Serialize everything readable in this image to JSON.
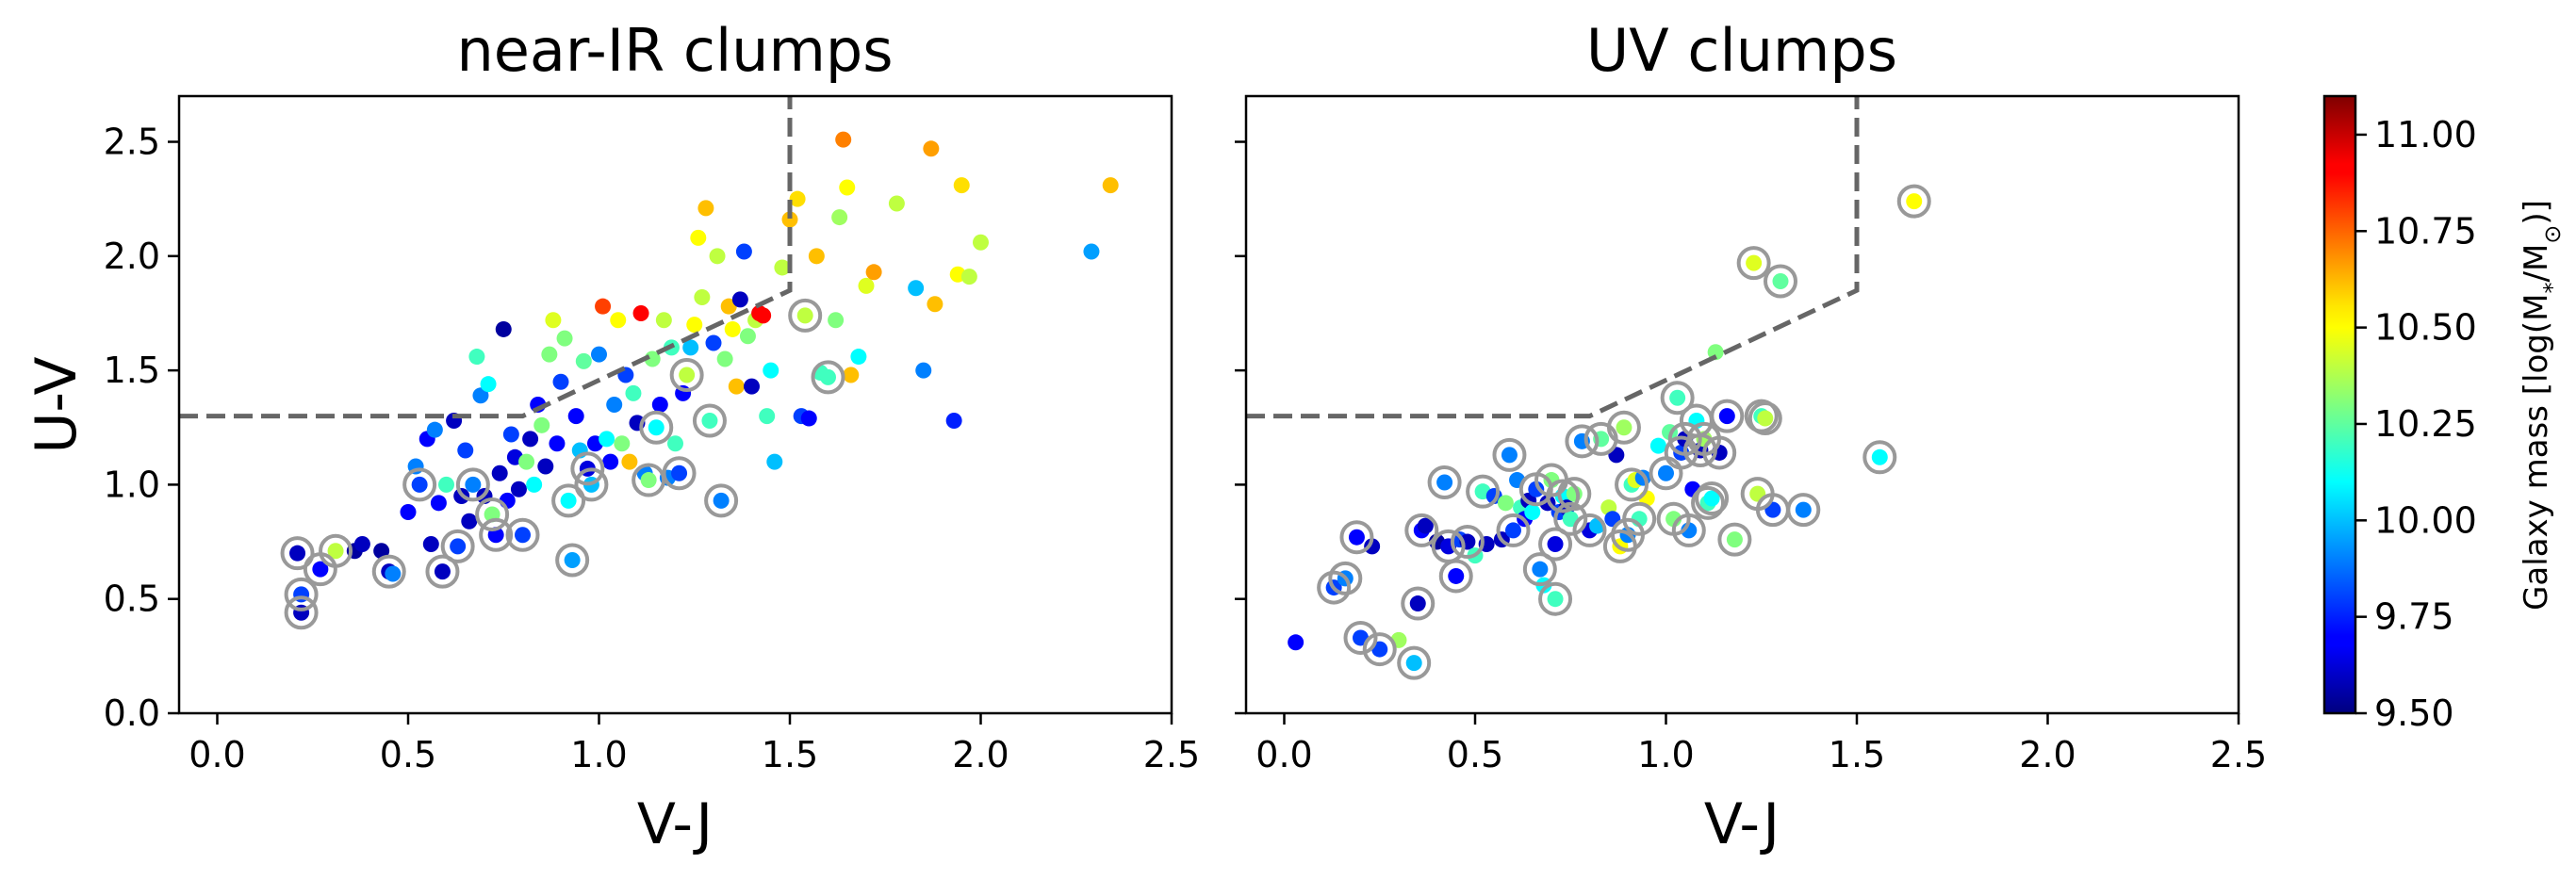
{
  "colors": {
    "frame": "#000000",
    "dashed_line": "#666666",
    "highlight_ring": "#999999"
  },
  "chart_data": [
    {
      "type": "scatter",
      "title": "near-IR clumps",
      "xlabel": "V-J",
      "ylabel": "U-V",
      "xlim": [
        -0.1,
        2.5
      ],
      "ylim": [
        0.0,
        2.7
      ],
      "xticks": [
        "0.0",
        "0.5",
        "1.0",
        "1.5",
        "2.0",
        "2.5"
      ],
      "yticks": [
        "0.0",
        "0.5",
        "1.0",
        "1.5",
        "2.0",
        "2.5"
      ],
      "selection_line": [
        [
          -0.1,
          1.3
        ],
        [
          0.8,
          1.3
        ],
        [
          1.5,
          1.85
        ],
        [
          1.5,
          2.7
        ]
      ],
      "points": [
        [
          0.21,
          0.7,
          9.6,
          1
        ],
        [
          0.22,
          0.52,
          9.8,
          1
        ],
        [
          0.22,
          0.44,
          9.6,
          1
        ],
        [
          0.27,
          0.63,
          9.7,
          1
        ],
        [
          0.31,
          0.71,
          10.4,
          1
        ],
        [
          0.36,
          0.71,
          9.55,
          0
        ],
        [
          0.38,
          0.74,
          9.6,
          0
        ],
        [
          0.43,
          0.71,
          9.55,
          0
        ],
        [
          0.45,
          0.62,
          9.6,
          1
        ],
        [
          0.46,
          0.61,
          9.9,
          0
        ],
        [
          0.5,
          0.88,
          9.7,
          0
        ],
        [
          0.52,
          1.08,
          9.9,
          0
        ],
        [
          0.53,
          1.0,
          9.8,
          1
        ],
        [
          0.55,
          1.2,
          9.7,
          0
        ],
        [
          0.56,
          0.74,
          9.6,
          0
        ],
        [
          0.57,
          1.24,
          9.9,
          0
        ],
        [
          0.58,
          0.92,
          9.7,
          0
        ],
        [
          0.59,
          0.62,
          9.6,
          1
        ],
        [
          0.6,
          1.0,
          10.2,
          0
        ],
        [
          0.62,
          1.28,
          9.6,
          0
        ],
        [
          0.63,
          0.73,
          9.8,
          1
        ],
        [
          0.64,
          0.95,
          9.6,
          0
        ],
        [
          0.65,
          1.15,
          9.8,
          0
        ],
        [
          0.66,
          0.84,
          9.6,
          0
        ],
        [
          0.67,
          1.0,
          9.9,
          1
        ],
        [
          0.68,
          1.56,
          10.2,
          0
        ],
        [
          0.69,
          1.39,
          9.9,
          0
        ],
        [
          0.7,
          0.95,
          9.6,
          0
        ],
        [
          0.71,
          1.44,
          10.1,
          0
        ],
        [
          0.72,
          0.87,
          10.3,
          1
        ],
        [
          0.73,
          0.78,
          9.7,
          1
        ],
        [
          0.74,
          1.05,
          9.6,
          0
        ],
        [
          0.75,
          1.68,
          9.55,
          0
        ],
        [
          0.76,
          0.93,
          9.7,
          0
        ],
        [
          0.77,
          1.22,
          9.8,
          0
        ],
        [
          0.78,
          1.12,
          9.65,
          0
        ],
        [
          0.79,
          0.98,
          9.6,
          0
        ],
        [
          0.8,
          0.78,
          9.8,
          1
        ],
        [
          0.81,
          1.1,
          10.3,
          0
        ],
        [
          0.82,
          1.2,
          9.6,
          0
        ],
        [
          0.83,
          1.0,
          10.1,
          0
        ],
        [
          0.84,
          1.35,
          9.7,
          0
        ],
        [
          0.85,
          1.26,
          10.3,
          0
        ],
        [
          0.86,
          1.08,
          9.6,
          0
        ],
        [
          0.87,
          1.57,
          10.3,
          0
        ],
        [
          0.88,
          1.72,
          10.45,
          0
        ],
        [
          0.89,
          1.18,
          9.7,
          0
        ],
        [
          0.9,
          1.45,
          9.8,
          0
        ],
        [
          0.91,
          1.64,
          10.3,
          0
        ],
        [
          0.92,
          0.93,
          10.1,
          1
        ],
        [
          0.93,
          0.67,
          9.95,
          1
        ],
        [
          0.94,
          1.3,
          9.7,
          0
        ],
        [
          0.95,
          1.15,
          10.0,
          0
        ],
        [
          0.96,
          1.54,
          10.25,
          0
        ],
        [
          0.97,
          1.07,
          9.65,
          1
        ],
        [
          0.98,
          1.0,
          10.0,
          1
        ],
        [
          0.99,
          1.18,
          9.7,
          0
        ],
        [
          1.0,
          1.57,
          9.9,
          0
        ],
        [
          1.01,
          1.78,
          10.8,
          0
        ],
        [
          1.02,
          1.2,
          10.1,
          0
        ],
        [
          1.03,
          1.1,
          9.7,
          0
        ],
        [
          1.04,
          1.35,
          9.9,
          0
        ],
        [
          1.05,
          1.72,
          10.5,
          0
        ],
        [
          1.06,
          1.18,
          10.3,
          0
        ],
        [
          1.07,
          1.48,
          9.8,
          0
        ],
        [
          1.08,
          1.1,
          10.6,
          0
        ],
        [
          1.09,
          1.4,
          10.2,
          0
        ],
        [
          1.1,
          1.27,
          9.6,
          0
        ],
        [
          1.11,
          1.75,
          10.9,
          0
        ],
        [
          1.12,
          1.05,
          9.9,
          0
        ],
        [
          1.13,
          1.02,
          10.3,
          1
        ],
        [
          1.14,
          1.55,
          10.3,
          0
        ],
        [
          1.15,
          1.25,
          10.1,
          1
        ],
        [
          1.16,
          1.35,
          9.7,
          0
        ],
        [
          1.17,
          1.72,
          10.4,
          0
        ],
        [
          1.18,
          1.03,
          9.9,
          0
        ],
        [
          1.19,
          1.6,
          10.2,
          0
        ],
        [
          1.2,
          1.18,
          10.2,
          0
        ],
        [
          1.21,
          1.05,
          9.8,
          1
        ],
        [
          1.22,
          1.4,
          9.7,
          0
        ],
        [
          1.23,
          1.48,
          10.4,
          1
        ],
        [
          1.24,
          1.6,
          10.0,
          0
        ],
        [
          1.25,
          1.7,
          10.5,
          0
        ],
        [
          1.26,
          2.08,
          10.5,
          0
        ],
        [
          1.27,
          1.82,
          10.4,
          0
        ],
        [
          1.28,
          2.21,
          10.6,
          0
        ],
        [
          1.29,
          1.28,
          10.2,
          1
        ],
        [
          1.3,
          1.62,
          9.8,
          0
        ],
        [
          1.31,
          2.0,
          10.4,
          0
        ],
        [
          1.32,
          0.93,
          9.9,
          1
        ],
        [
          1.33,
          1.55,
          10.3,
          0
        ],
        [
          1.34,
          1.78,
          10.6,
          0
        ],
        [
          1.35,
          1.68,
          10.5,
          0
        ],
        [
          1.36,
          1.43,
          10.6,
          0
        ],
        [
          1.37,
          1.81,
          9.6,
          0
        ],
        [
          1.38,
          2.02,
          9.8,
          0
        ],
        [
          1.39,
          1.65,
          10.3,
          0
        ],
        [
          1.4,
          1.43,
          9.6,
          0
        ],
        [
          1.41,
          1.72,
          10.4,
          0
        ],
        [
          1.42,
          1.75,
          10.9,
          0
        ],
        [
          1.43,
          1.74,
          10.9,
          0
        ],
        [
          1.44,
          1.3,
          10.2,
          0
        ],
        [
          1.45,
          1.5,
          10.1,
          0
        ],
        [
          1.46,
          1.1,
          10.0,
          0
        ],
        [
          1.48,
          1.95,
          10.4,
          0
        ],
        [
          1.5,
          2.16,
          10.6,
          0
        ],
        [
          1.52,
          2.25,
          10.55,
          0
        ],
        [
          1.53,
          1.3,
          9.8,
          0
        ],
        [
          1.54,
          1.74,
          10.4,
          1
        ],
        [
          1.55,
          1.29,
          9.7,
          0
        ],
        [
          1.57,
          2.0,
          10.6,
          0
        ],
        [
          1.58,
          1.49,
          10.2,
          0
        ],
        [
          1.6,
          1.47,
          10.2,
          1
        ],
        [
          1.62,
          1.72,
          10.3,
          0
        ],
        [
          1.63,
          2.17,
          10.35,
          0
        ],
        [
          1.64,
          2.51,
          10.7,
          0
        ],
        [
          1.65,
          2.3,
          10.5,
          0
        ],
        [
          1.66,
          1.48,
          10.6,
          0
        ],
        [
          1.68,
          1.56,
          10.1,
          0
        ],
        [
          1.7,
          1.87,
          10.45,
          0
        ],
        [
          1.72,
          1.93,
          10.65,
          0
        ],
        [
          1.78,
          2.23,
          10.4,
          0
        ],
        [
          1.83,
          1.86,
          10.0,
          0
        ],
        [
          1.85,
          1.5,
          9.9,
          0
        ],
        [
          1.87,
          2.47,
          10.65,
          0
        ],
        [
          1.88,
          1.79,
          10.6,
          0
        ],
        [
          1.93,
          1.28,
          9.75,
          0
        ],
        [
          1.94,
          1.92,
          10.5,
          0
        ],
        [
          1.95,
          2.31,
          10.55,
          0
        ],
        [
          1.97,
          1.91,
          10.4,
          0
        ],
        [
          2.0,
          2.06,
          10.4,
          0
        ],
        [
          2.29,
          2.02,
          9.95,
          0
        ],
        [
          2.34,
          2.31,
          10.6,
          0
        ]
      ]
    },
    {
      "type": "scatter",
      "title": "UV clumps",
      "xlabel": "V-J",
      "ylabel": "",
      "xlim": [
        -0.1,
        2.5
      ],
      "ylim": [
        0.0,
        2.7
      ],
      "xticks": [
        "0.0",
        "0.5",
        "1.0",
        "1.5",
        "2.0",
        "2.5"
      ],
      "yticks": [],
      "selection_line": [
        [
          -0.1,
          1.3
        ],
        [
          0.8,
          1.3
        ],
        [
          1.5,
          1.85
        ],
        [
          1.5,
          2.7
        ]
      ],
      "points": [
        [
          0.03,
          0.31,
          9.7,
          0
        ],
        [
          0.13,
          0.55,
          9.8,
          1
        ],
        [
          0.16,
          0.59,
          9.9,
          1
        ],
        [
          0.19,
          0.77,
          9.7,
          1
        ],
        [
          0.2,
          0.33,
          9.8,
          1
        ],
        [
          0.23,
          0.73,
          9.6,
          0
        ],
        [
          0.25,
          0.28,
          9.8,
          1
        ],
        [
          0.3,
          0.32,
          10.35,
          0
        ],
        [
          0.34,
          0.22,
          10.0,
          1
        ],
        [
          0.35,
          0.48,
          9.6,
          1
        ],
        [
          0.36,
          0.8,
          9.7,
          1
        ],
        [
          0.37,
          0.82,
          9.6,
          0
        ],
        [
          0.4,
          0.75,
          9.55,
          0
        ],
        [
          0.42,
          1.01,
          9.9,
          1
        ],
        [
          0.43,
          0.73,
          9.65,
          1
        ],
        [
          0.45,
          0.6,
          9.7,
          1
        ],
        [
          0.46,
          0.76,
          9.8,
          0
        ],
        [
          0.48,
          0.75,
          9.6,
          1
        ],
        [
          0.5,
          0.69,
          10.2,
          0
        ],
        [
          0.52,
          0.97,
          10.2,
          1
        ],
        [
          0.53,
          0.74,
          9.6,
          0
        ],
        [
          0.55,
          0.95,
          9.8,
          0
        ],
        [
          0.57,
          0.76,
          9.6,
          0
        ],
        [
          0.58,
          0.92,
          10.3,
          0
        ],
        [
          0.59,
          1.13,
          9.9,
          1
        ],
        [
          0.6,
          0.8,
          9.8,
          1
        ],
        [
          0.61,
          1.02,
          9.9,
          0
        ],
        [
          0.62,
          0.9,
          10.2,
          0
        ],
        [
          0.63,
          0.85,
          9.7,
          0
        ],
        [
          0.64,
          0.93,
          9.6,
          0
        ],
        [
          0.65,
          0.88,
          10.1,
          0
        ],
        [
          0.66,
          0.98,
          9.8,
          1
        ],
        [
          0.67,
          0.63,
          9.9,
          1
        ],
        [
          0.68,
          0.56,
          10.1,
          0
        ],
        [
          0.69,
          0.92,
          9.6,
          0
        ],
        [
          0.7,
          1.02,
          10.3,
          1
        ],
        [
          0.71,
          0.74,
          9.65,
          1
        ],
        [
          0.71,
          0.5,
          10.2,
          1
        ],
        [
          0.72,
          0.88,
          9.8,
          0
        ],
        [
          0.73,
          0.95,
          10.1,
          1
        ],
        [
          0.74,
          0.9,
          9.6,
          0
        ],
        [
          0.75,
          0.85,
          10.2,
          1
        ],
        [
          0.76,
          0.96,
          10.3,
          1
        ],
        [
          0.78,
          1.19,
          9.9,
          1
        ],
        [
          0.8,
          0.8,
          9.65,
          1
        ],
        [
          0.82,
          0.82,
          10.0,
          0
        ],
        [
          0.83,
          1.2,
          10.25,
          1
        ],
        [
          0.85,
          0.9,
          10.4,
          0
        ],
        [
          0.86,
          0.85,
          9.8,
          0
        ],
        [
          0.87,
          1.13,
          9.6,
          0
        ],
        [
          0.88,
          0.73,
          10.5,
          1
        ],
        [
          0.89,
          1.25,
          10.35,
          1
        ],
        [
          0.9,
          0.78,
          9.9,
          1
        ],
        [
          0.91,
          1.0,
          10.2,
          1
        ],
        [
          0.92,
          1.02,
          10.45,
          0
        ],
        [
          0.93,
          0.85,
          10.2,
          1
        ],
        [
          0.94,
          1.03,
          9.9,
          0
        ],
        [
          0.95,
          0.94,
          10.5,
          0
        ],
        [
          0.98,
          1.17,
          10.1,
          0
        ],
        [
          1.0,
          1.05,
          9.9,
          1
        ],
        [
          1.01,
          1.23,
          10.25,
          0
        ],
        [
          1.02,
          0.85,
          10.3,
          1
        ],
        [
          1.03,
          1.38,
          10.2,
          1
        ],
        [
          1.04,
          1.14,
          9.8,
          1
        ],
        [
          1.05,
          1.2,
          9.6,
          1
        ],
        [
          1.06,
          0.8,
          9.9,
          1
        ],
        [
          1.07,
          0.98,
          9.7,
          0
        ],
        [
          1.08,
          1.28,
          10.1,
          1
        ],
        [
          1.09,
          1.15,
          9.6,
          1
        ],
        [
          1.1,
          1.2,
          10.35,
          1
        ],
        [
          1.11,
          0.92,
          10.2,
          1
        ],
        [
          1.12,
          0.94,
          10.1,
          1
        ],
        [
          1.13,
          1.58,
          10.3,
          0
        ],
        [
          1.14,
          1.14,
          9.6,
          1
        ],
        [
          1.16,
          1.3,
          9.7,
          1
        ],
        [
          1.18,
          0.76,
          10.3,
          1
        ],
        [
          1.23,
          1.97,
          10.45,
          1
        ],
        [
          1.24,
          0.96,
          10.4,
          1
        ],
        [
          1.25,
          1.3,
          10.2,
          1
        ],
        [
          1.26,
          1.29,
          10.4,
          1
        ],
        [
          1.28,
          0.89,
          9.8,
          1
        ],
        [
          1.3,
          1.89,
          10.25,
          1
        ],
        [
          1.36,
          0.89,
          9.9,
          1
        ],
        [
          1.56,
          1.12,
          10.1,
          1
        ],
        [
          1.65,
          2.24,
          10.5,
          1
        ]
      ]
    }
  ],
  "colorbar": {
    "label": "Galaxy mass [log(M",
    "label_sub": "*",
    "label_mid": "/M",
    "label_sub2": "⊙",
    "label_end": ")]",
    "min": 9.5,
    "max": 11.1,
    "ticks": [
      "9.50",
      "9.75",
      "10.00",
      "10.25",
      "10.50",
      "10.75",
      "11.00"
    ],
    "colormap": "jet"
  }
}
